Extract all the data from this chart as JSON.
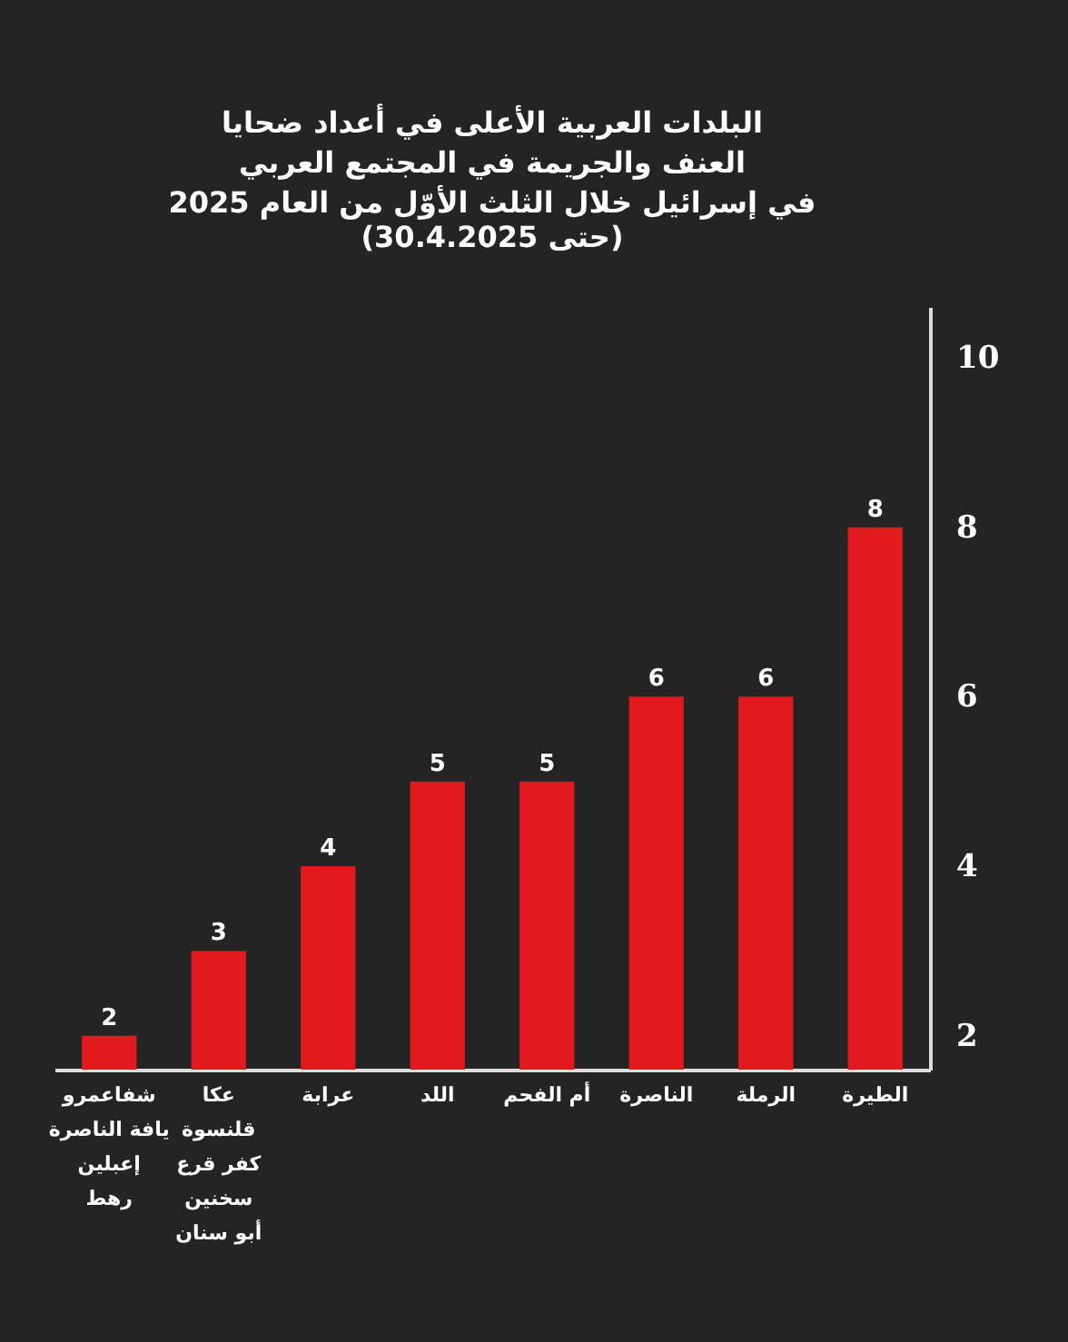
{
  "chart_data": {
    "type": "bar",
    "title": "البلدات العربية الأعلى في أعداد ضحايا\nالعنف والجريمة في المجتمع العربي\nفي إسرائيل خلال الثلث الأوّل من العام 2025",
    "subtitle": "(حتى 30.4.2025)",
    "categories": [
      "شفاعمرو\nيافة الناصرة\nإعبلين\nرهط",
      "عكا\nقلنسوة\nكفر قرع\nسخنين\nأبو سنان",
      "عرابة",
      "اللد",
      "أم الفحم",
      "الناصرة",
      "الرملة",
      "الطيرة"
    ],
    "values": [
      2,
      3,
      4,
      5,
      5,
      6,
      6,
      8
    ],
    "color": "#e3191f",
    "ylim": [
      1.6,
      10.6
    ],
    "yticks": [
      2,
      4,
      6,
      8,
      10
    ],
    "data_labels": true,
    "grid": false
  }
}
